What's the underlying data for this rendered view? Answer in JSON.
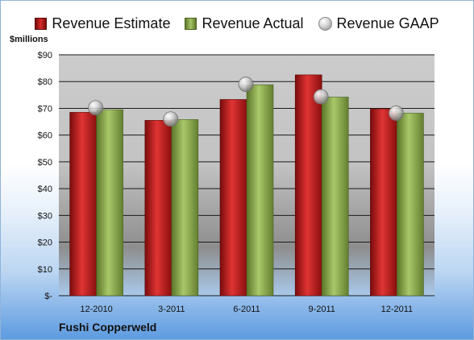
{
  "chart_data": {
    "type": "bar",
    "unit_label": "$millions",
    "company": "Fushi Copperweld",
    "categories": [
      "12-2010",
      "3-2011",
      "6-2011",
      "9-2011",
      "12-2011"
    ],
    "series": [
      {
        "name": "Revenue Estimate",
        "kind": "bar",
        "color": "#c0181a",
        "values": [
          68.5,
          65.5,
          73.3,
          82.5,
          69.8
        ]
      },
      {
        "name": "Revenue Actual",
        "kind": "bar",
        "color": "#8aaa4a",
        "values": [
          69.5,
          65.8,
          78.8,
          74.2,
          68.2
        ]
      },
      {
        "name": "Revenue GAAP",
        "kind": "marker",
        "color": "#bfbfbf",
        "values": [
          70.2,
          66.0,
          79.0,
          74.3,
          68.2
        ]
      }
    ],
    "ylim": [
      0,
      90
    ],
    "yticks": [
      0,
      10,
      20,
      30,
      40,
      50,
      60,
      70,
      80,
      90
    ],
    "ytick_labels": [
      "$-",
      "$10",
      "$20",
      "$30",
      "$40",
      "$50",
      "$60",
      "$70",
      "$80",
      "$90"
    ],
    "grid": true,
    "legend": "top"
  }
}
